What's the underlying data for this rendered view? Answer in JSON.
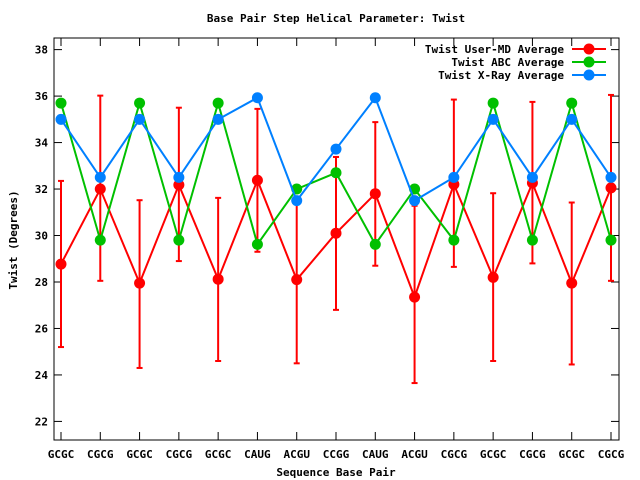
{
  "chart_data": {
    "type": "line",
    "title": "Base Pair Step Helical Parameter: Twist",
    "xlabel": "Sequence Base Pair",
    "ylabel": "Twist (Degrees)",
    "ylim": [
      21.2,
      38.5
    ],
    "yticks": [
      22,
      24,
      26,
      28,
      30,
      32,
      34,
      36,
      38
    ],
    "grid": false,
    "legend_position": "top-right",
    "categories": [
      "GCGC",
      "CGCG",
      "GCGC",
      "CGCG",
      "GCGC",
      "CAUG",
      "ACGU",
      "CCGG",
      "CAUG",
      "ACGU",
      "CGCG",
      "GCGC",
      "CGCG",
      "GCGC",
      "CGCG"
    ],
    "series": [
      {
        "name": "Twist User-MD Average",
        "color": "#ff0000",
        "values": [
          28.77,
          32.0,
          27.95,
          32.18,
          28.12,
          32.38,
          28.1,
          30.1,
          31.8,
          27.35,
          32.2,
          28.2,
          32.26,
          27.95,
          32.05
        ],
        "error_low": [
          25.2,
          28.05,
          24.3,
          28.9,
          24.6,
          29.3,
          24.5,
          26.8,
          28.7,
          23.65,
          28.65,
          24.6,
          28.8,
          24.45,
          28.05
        ],
        "error_high": [
          32.35,
          36.02,
          31.52,
          35.5,
          31.62,
          35.45,
          31.5,
          33.38,
          34.88,
          31.28,
          35.85,
          31.82,
          35.75,
          31.42,
          36.05
        ]
      },
      {
        "name": "Twist ABC Average",
        "color": "#00c000",
        "values": [
          35.7,
          29.8,
          35.7,
          29.8,
          35.7,
          29.62,
          32.0,
          32.7,
          29.62,
          32.0,
          29.8,
          35.7,
          29.8,
          35.7,
          29.8
        ]
      },
      {
        "name": "Twist X-Ray Average",
        "color": "#0080ff",
        "values": [
          35.0,
          32.5,
          35.0,
          32.5,
          35.0,
          35.93,
          31.5,
          33.72,
          35.93,
          31.5,
          32.5,
          35.0,
          32.5,
          35.0,
          32.5
        ]
      }
    ]
  }
}
